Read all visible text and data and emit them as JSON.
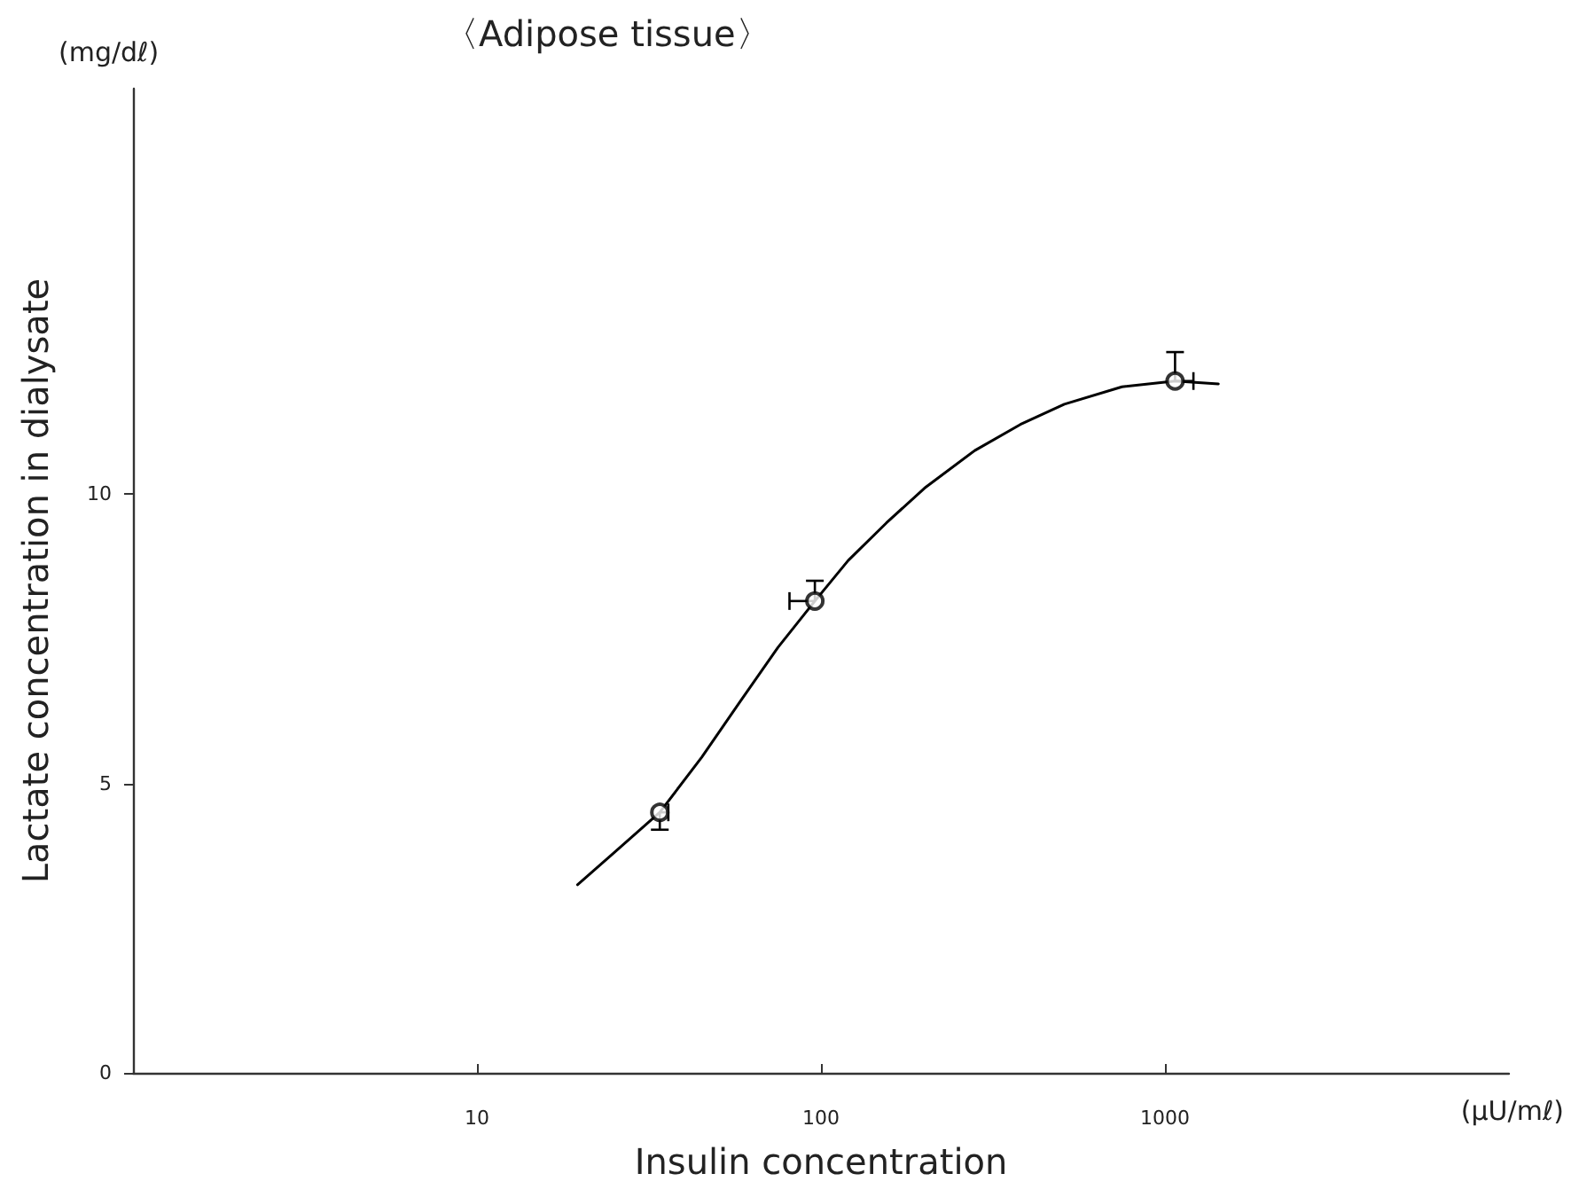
{
  "chart_data": {
    "type": "scatter",
    "title": "〈Adipose tissue〉",
    "xlabel": "Insulin concentration",
    "ylabel": "Lactate concentration in dialysate",
    "annotations": [
      "(mg/dℓ)",
      "(μU/mℓ)"
    ],
    "log": "x",
    "xlim": [
      1,
      10000
    ],
    "xticks": [
      10,
      100,
      1000
    ],
    "ylim": [
      0,
      17
    ],
    "yticks": [
      0,
      5,
      10
    ],
    "grid": false,
    "series": [
      {
        "color": "#000000",
        "marker": "circle",
        "x": [
          34,
          96,
          1070
        ],
        "values": [
          4.5,
          8.15,
          11.95
        ],
        "errors": [
          [
            4.2,
            4.5
          ],
          [
            8.15,
            8.5
          ],
          [
            11.95,
            12.45
          ]
        ],
        "xerrors": [
          [
            34,
            36
          ],
          [
            81,
            96
          ],
          [
            1070,
            1210
          ]
        ]
      },
      {
        "type": "line",
        "color": "#000000",
        "marker": "none",
        "line_style": "solid",
        "x": [
          19.6,
          25,
          34,
          45,
          58,
          75,
          96,
          120,
          155,
          200,
          280,
          380,
          510,
          750,
          1070,
          1430
        ],
        "values": [
          3.25,
          3.8,
          4.5,
          5.45,
          6.4,
          7.35,
          8.15,
          8.85,
          9.5,
          10.1,
          10.75,
          11.2,
          11.55,
          11.85,
          11.95,
          11.9
        ]
      }
    ]
  }
}
